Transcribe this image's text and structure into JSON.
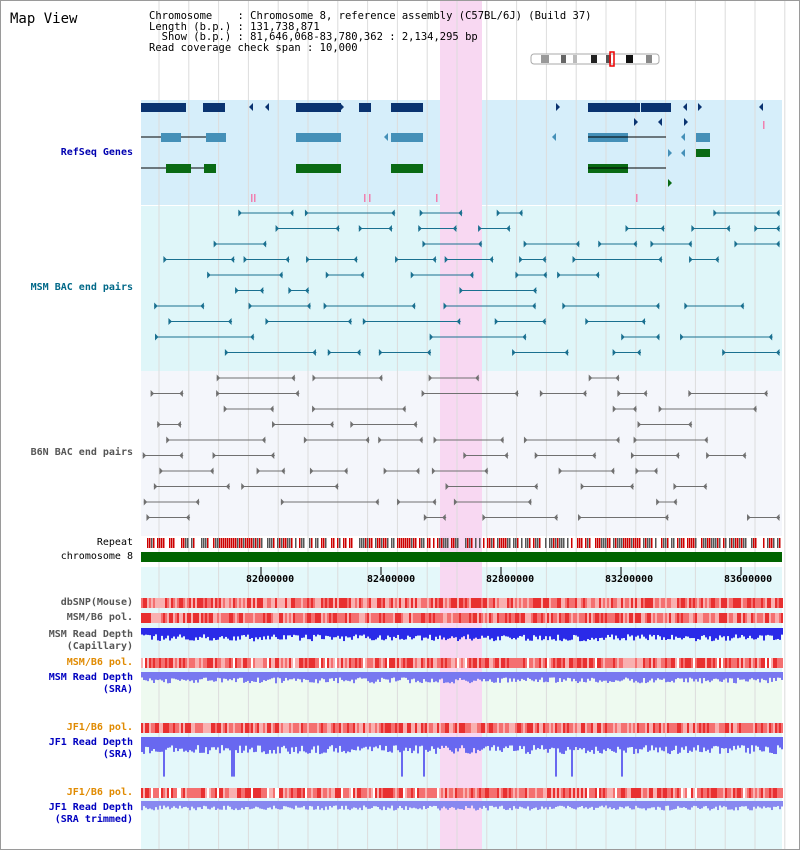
{
  "app": {
    "title": "Map View"
  },
  "info": {
    "line1": "Chromosome    : Chromosome 8, reference assembly (C57BL/6J) (Build 37)",
    "line2": "Length (b.p.) : 131,738,871",
    "line3": "  Show (b.p.) : 81,646,068-83,780,362 : 2,134,295 bp",
    "line4": "Read coverage check span : 10,000"
  },
  "tracks": {
    "refseq": "RefSeq Genes",
    "msm_bac": "MSM BAC end pairs",
    "b6n_bac": "B6N BAC end pairs",
    "repeat": "Repeat",
    "chromosome": "chromosome 8",
    "dbsnp": "dbSNP(Mouse)",
    "msm_b6_pol_1": "MSM/B6 pol.",
    "msm_read_depth_cap_1": "MSM Read Depth",
    "msm_read_depth_cap_2": "(Capillary)",
    "msm_b6_pol_2": "MSM/B6 pol.",
    "msm_read_depth_sra_1": "MSM Read Depth",
    "msm_read_depth_sra_2": "(SRA)",
    "jf1_b6_pol_1": "JF1/B6 pol.",
    "jf1_read_depth_sra_1": "JF1 Read Depth",
    "jf1_read_depth_sra_2": "(SRA)",
    "jf1_b6_pol_2": "JF1/B6 pol.",
    "jf1_read_depth_trim_1": "JF1 Read Depth",
    "jf1_read_depth_trim_2": "(SRA trimmed)"
  },
  "axis": {
    "ticks": [
      "82000000",
      "82400000",
      "82800000",
      "83200000",
      "83600000"
    ]
  },
  "colors": {
    "refseq_bg": "#d6eefa",
    "msm_bg": "#dff6f9",
    "b6n_bg": "#f4f6fb",
    "highlight": "#f8d8f2",
    "gene_navy": "#0a3370",
    "gene_steel": "#4590b8",
    "gene_green": "#0a6a14",
    "msm_line": "#1a7090",
    "b6n_line": "#707070",
    "chromosome": "#006400",
    "depth_blue": "#2a2ae8",
    "depth_light": "#7878f0",
    "label_blue": "#0000c0",
    "label_teal": "#006888",
    "label_gray": "#555555",
    "label_orange": "#e08a00"
  }
}
